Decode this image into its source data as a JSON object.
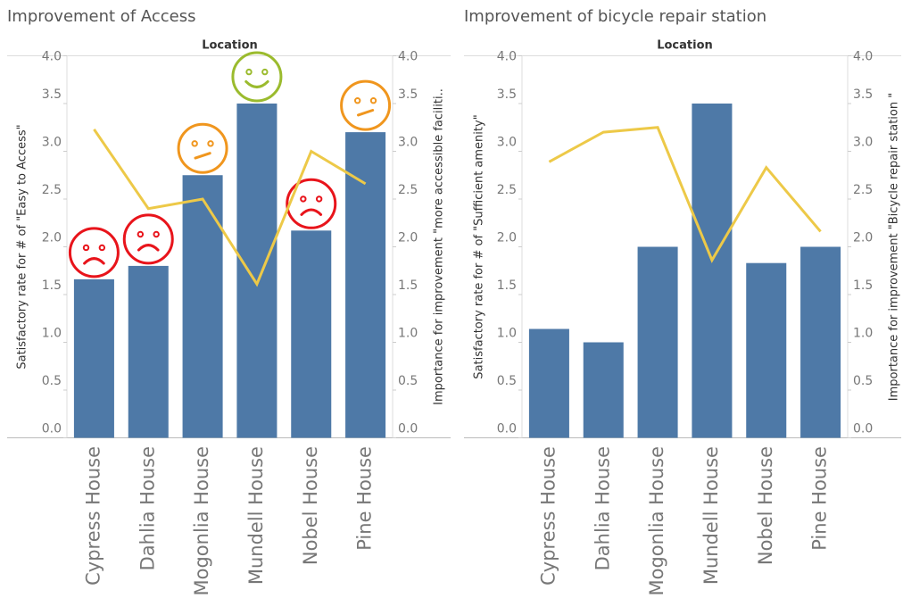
{
  "chart_data": [
    {
      "type": "bar_line",
      "title": "Improvement of Access",
      "x_label": "Location",
      "y_label": "Satisfactory rate for  # of \"Easy to Access\"",
      "y2_label": "Importance for improvement \"more accessible faciliti..",
      "categories": [
        "Cypress House",
        "Dahlia House",
        "Mogonlia House",
        "Mundell House",
        "Nobel House",
        "Pine House"
      ],
      "series": [
        {
          "name": "Satisfactory rate",
          "color": "#4e79a7",
          "values": [
            1.66,
            1.8,
            2.75,
            3.5,
            2.17,
            3.2
          ]
        },
        {
          "name": "Importance for improvement",
          "color": "#edc948",
          "axis": "y2",
          "values": [
            3.23,
            2.4,
            2.5,
            1.61,
            3.0,
            2.66
          ]
        }
      ],
      "markers": [
        {
          "shape": "sad",
          "color": "#e8141b"
        },
        {
          "shape": "sad",
          "color": "#e8141b"
        },
        {
          "shape": "neutral",
          "color": "#f0961e"
        },
        {
          "shape": "happy",
          "color": "#9bbb2e"
        },
        {
          "shape": "sad",
          "color": "#e8141b"
        },
        {
          "shape": "neutral",
          "color": "#f0961e"
        }
      ],
      "ylim": [
        0,
        4
      ],
      "yticks": [
        {
          "value": 0,
          "label": "0.0"
        },
        {
          "value": 0.5,
          "label": "0.5"
        },
        {
          "value": 1,
          "label": "1.0"
        },
        {
          "value": 1.5,
          "label": "1.5"
        },
        {
          "value": 2,
          "label": "2.0"
        },
        {
          "value": 2.5,
          "label": "2.5"
        },
        {
          "value": 3,
          "label": "3.0"
        },
        {
          "value": 3.5,
          "label": "3.5"
        },
        {
          "value": 4,
          "label": "4.0"
        }
      ],
      "y2lim": [
        0,
        4
      ],
      "y2ticks": [
        {
          "value": 0,
          "label": "0.0"
        },
        {
          "value": 0.5,
          "label": "0.5"
        },
        {
          "value": 1,
          "label": "1.0"
        },
        {
          "value": 1.5,
          "label": "1.5"
        },
        {
          "value": 2,
          "label": "2.0"
        },
        {
          "value": 2.5,
          "label": "2.5"
        },
        {
          "value": 3,
          "label": "3.0"
        },
        {
          "value": 3.5,
          "label": "3.5"
        },
        {
          "value": 4,
          "label": "4.0"
        }
      ]
    },
    {
      "type": "bar_line",
      "title": "Improvement of bicycle repair station",
      "x_label": "Location",
      "y_label": "Satisfactory rate for # of \"Sufficient amenity\"",
      "y2_label": "Importance for improvement \"Bicycle repair station \"",
      "categories": [
        "Cypress House",
        "Dahlia House",
        "Mogonlia House",
        "Mundell House",
        "Nobel House",
        "Pine House"
      ],
      "series": [
        {
          "name": "Satisfactory rate",
          "color": "#4e79a7",
          "values": [
            1.14,
            1.0,
            2.0,
            3.5,
            1.83,
            2.0
          ]
        },
        {
          "name": "Importance for improvement",
          "color": "#edc948",
          "axis": "y2",
          "values": [
            2.89,
            3.2,
            3.25,
            1.86,
            2.83,
            2.16
          ]
        }
      ],
      "ylim": [
        0,
        4
      ],
      "yticks": [
        {
          "value": 0,
          "label": "0.0"
        },
        {
          "value": 0.5,
          "label": "0.5"
        },
        {
          "value": 1,
          "label": "1.0"
        },
        {
          "value": 1.5,
          "label": "1.5"
        },
        {
          "value": 2,
          "label": "2.0"
        },
        {
          "value": 2.5,
          "label": "2.5"
        },
        {
          "value": 3,
          "label": "3.0"
        },
        {
          "value": 3.5,
          "label": "3.5"
        },
        {
          "value": 4,
          "label": "4.0"
        }
      ],
      "y2lim": [
        0,
        4
      ],
      "y2ticks": [
        {
          "value": 0,
          "label": "0.0"
        },
        {
          "value": 0.5,
          "label": "0.5"
        },
        {
          "value": 1,
          "label": "1.0"
        },
        {
          "value": 1.5,
          "label": "1.5"
        },
        {
          "value": 2,
          "label": "2.0"
        },
        {
          "value": 2.5,
          "label": "2.5"
        },
        {
          "value": 3,
          "label": "3.0"
        },
        {
          "value": 3.5,
          "label": "3.5"
        },
        {
          "value": 4,
          "label": "4.0"
        }
      ]
    }
  ]
}
